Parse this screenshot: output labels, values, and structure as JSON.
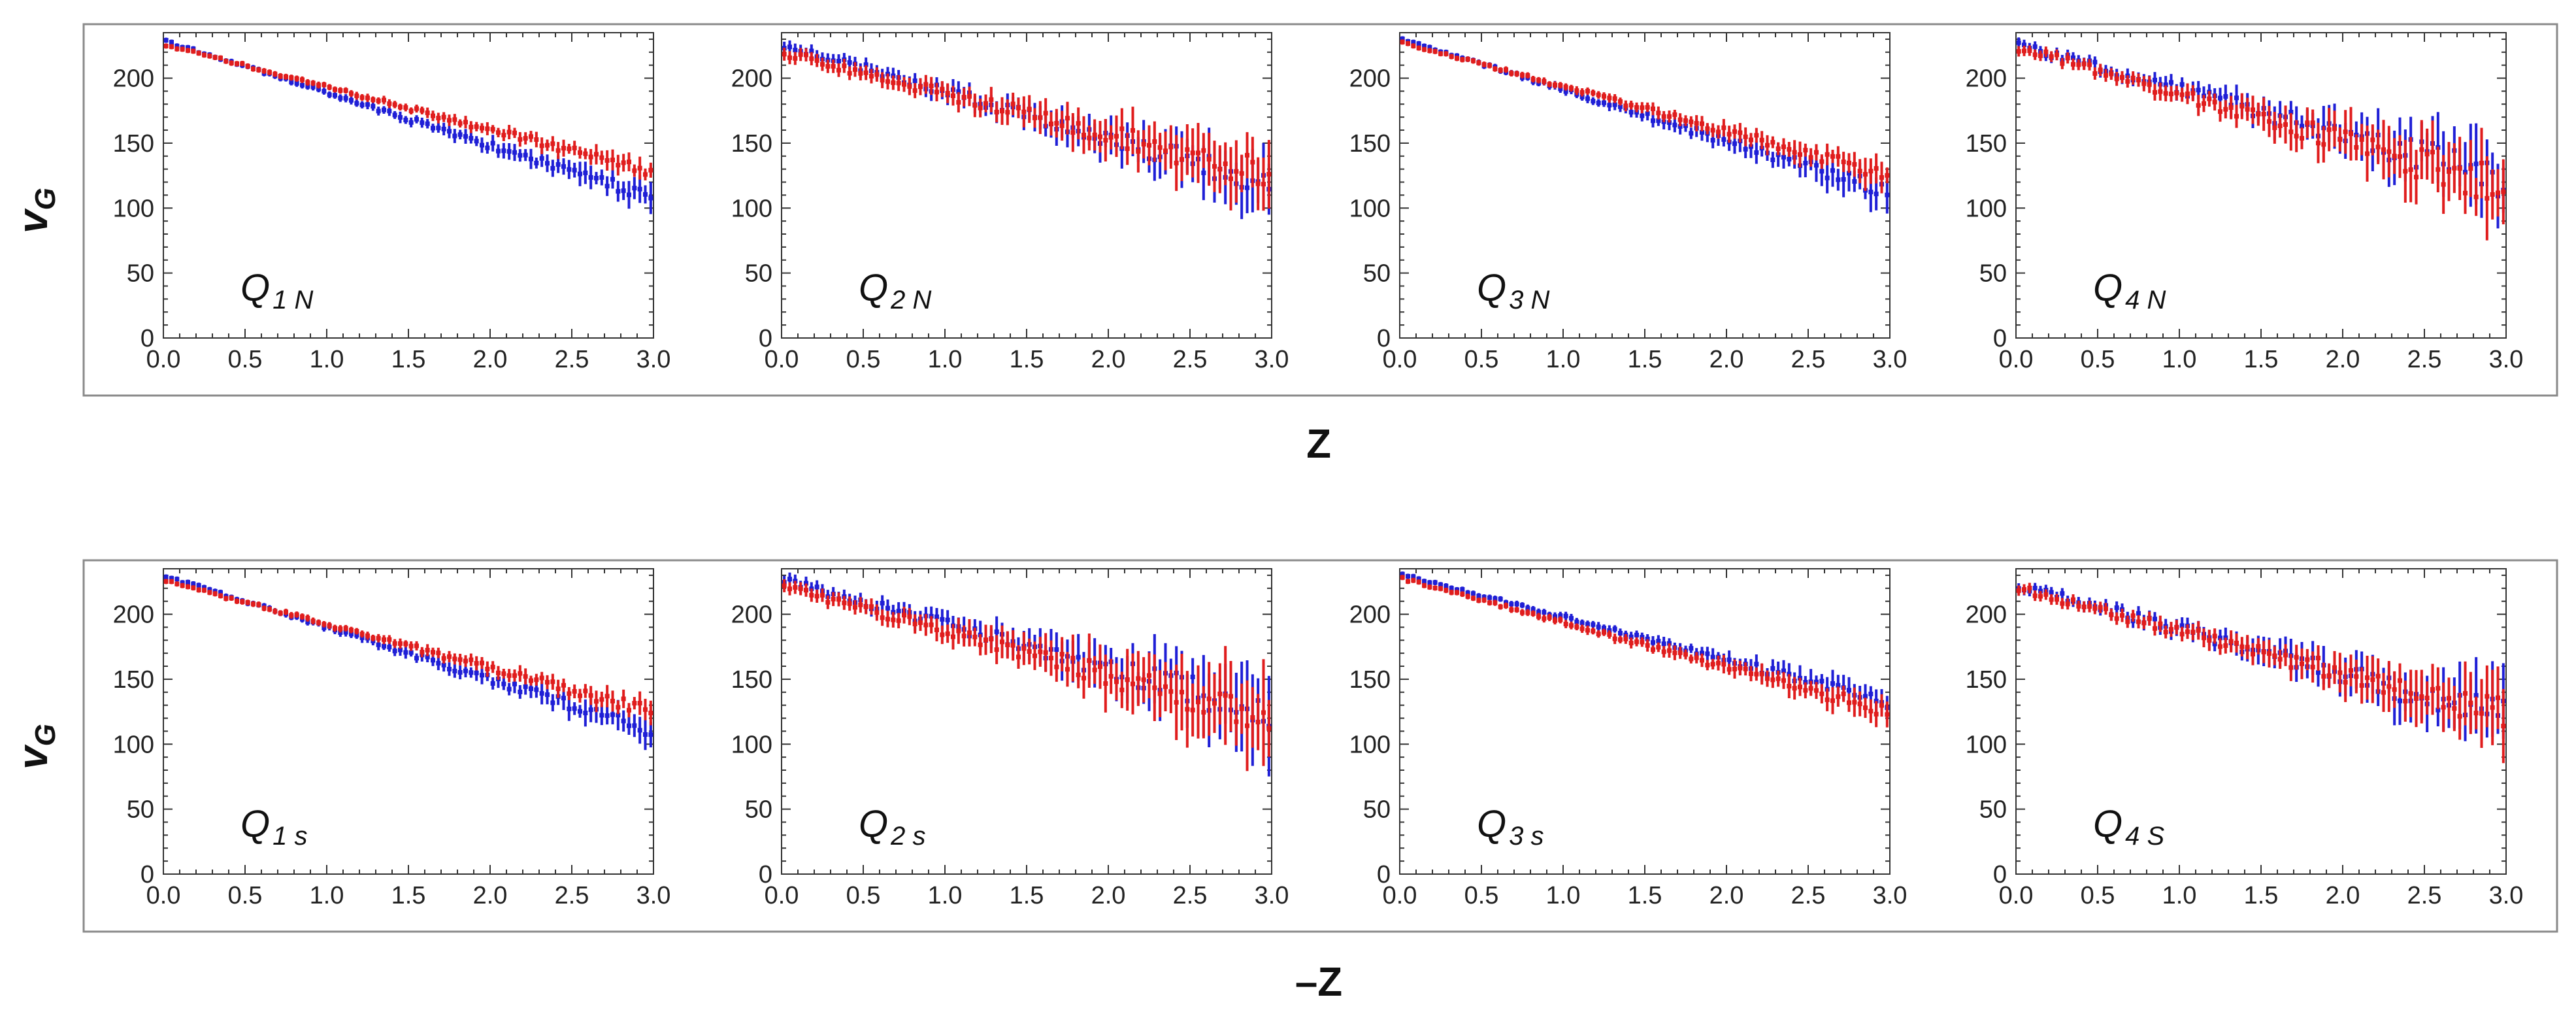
{
  "colors": {
    "blue": "#1f1fd6",
    "red": "#e01d1d",
    "frame": "#8a8a8a",
    "axis": "#333333"
  },
  "figure": {
    "rows": [
      {
        "xlabel": "Z",
        "ylabel_main": "v",
        "ylabel_sub": "G"
      },
      {
        "xlabel": "–Z",
        "ylabel_main": "v",
        "ylabel_sub": "G"
      }
    ]
  },
  "chart_data": [
    {
      "type": "scatter",
      "title_main": "Q",
      "title_sub": "1 N",
      "xlim": [
        0,
        3
      ],
      "ylim": [
        0,
        235
      ],
      "x_ticks": [
        "0.0",
        "0.5",
        "1.0",
        "1.5",
        "2.0",
        "2.5",
        "3.0"
      ],
      "y_ticks": [
        "0",
        "50",
        "100",
        "150",
        "200"
      ],
      "series": [
        {
          "name": "blue",
          "y0": 229,
          "y1": 108,
          "noise_start": 1,
          "noise_end": 5,
          "err_start": 2,
          "err_end": 9,
          "seed": 11
        },
        {
          "name": "red",
          "y0": 226,
          "y1": 128,
          "noise_start": 1,
          "noise_end": 4,
          "err_start": 2,
          "err_end": 7,
          "seed": 12
        }
      ]
    },
    {
      "type": "scatter",
      "title_main": "Q",
      "title_sub": "2 N",
      "xlim": [
        0,
        3
      ],
      "ylim": [
        0,
        235
      ],
      "x_ticks": [
        "0.0",
        "0.5",
        "1.0",
        "1.5",
        "2.0",
        "2.5",
        "3.0"
      ],
      "y_ticks": [
        "0",
        "50",
        "100",
        "150",
        "200"
      ],
      "series": [
        {
          "name": "blue",
          "y0": 226,
          "y1": 118,
          "noise_start": 3,
          "noise_end": 13,
          "err_start": 5,
          "err_end": 22,
          "seed": 21
        },
        {
          "name": "red",
          "y0": 220,
          "y1": 125,
          "noise_start": 3,
          "noise_end": 13,
          "err_start": 5,
          "err_end": 24,
          "seed": 22
        }
      ]
    },
    {
      "type": "scatter",
      "title_main": "Q",
      "title_sub": "3 N",
      "xlim": [
        0,
        3
      ],
      "ylim": [
        0,
        235
      ],
      "x_ticks": [
        "0.0",
        "0.5",
        "1.0",
        "1.5",
        "2.0",
        "2.5",
        "3.0"
      ],
      "y_ticks": [
        "0",
        "50",
        "100",
        "150",
        "200"
      ],
      "series": [
        {
          "name": "blue",
          "y0": 231,
          "y1": 112,
          "noise_start": 1,
          "noise_end": 6,
          "err_start": 2,
          "err_end": 12,
          "seed": 31
        },
        {
          "name": "red",
          "y0": 228,
          "y1": 125,
          "noise_start": 1,
          "noise_end": 5,
          "err_start": 2,
          "err_end": 10,
          "seed": 32
        }
      ]
    },
    {
      "type": "scatter",
      "title_main": "Q",
      "title_sub": "4 N",
      "xlim": [
        0,
        3
      ],
      "ylim": [
        0,
        235
      ],
      "x_ticks": [
        "0.0",
        "0.5",
        "1.0",
        "1.5",
        "2.0",
        "2.5",
        "3.0"
      ],
      "y_ticks": [
        "0",
        "50",
        "100",
        "150",
        "200"
      ],
      "series": [
        {
          "name": "blue",
          "y0": 226,
          "y1": 122,
          "noise_start": 3,
          "noise_end": 16,
          "err_start": 4,
          "err_end": 26,
          "seed": 41
        },
        {
          "name": "red",
          "y0": 224,
          "y1": 115,
          "noise_start": 3,
          "noise_end": 16,
          "err_start": 4,
          "err_end": 28,
          "seed": 42
        }
      ]
    },
    {
      "type": "scatter",
      "title_main": "Q",
      "title_sub": "1 s",
      "xlim": [
        0,
        3
      ],
      "ylim": [
        0,
        235
      ],
      "x_ticks": [
        "0.0",
        "0.5",
        "1.0",
        "1.5",
        "2.0",
        "2.5",
        "3.0"
      ],
      "y_ticks": [
        "0",
        "50",
        "100",
        "150",
        "200"
      ],
      "series": [
        {
          "name": "blue",
          "y0": 230,
          "y1": 110,
          "noise_start": 1,
          "noise_end": 5,
          "err_start": 2,
          "err_end": 10,
          "seed": 51
        },
        {
          "name": "red",
          "y0": 226,
          "y1": 125,
          "noise_start": 1,
          "noise_end": 5,
          "err_start": 2,
          "err_end": 8,
          "seed": 52
        }
      ]
    },
    {
      "type": "scatter",
      "title_main": "Q",
      "title_sub": "2 s",
      "xlim": [
        0,
        3
      ],
      "ylim": [
        0,
        235
      ],
      "x_ticks": [
        "0.0",
        "0.5",
        "1.0",
        "1.5",
        "2.0",
        "2.5",
        "3.0"
      ],
      "y_ticks": [
        "0",
        "50",
        "100",
        "150",
        "200"
      ],
      "series": [
        {
          "name": "blue",
          "y0": 226,
          "y1": 125,
          "noise_start": 3,
          "noise_end": 15,
          "err_start": 5,
          "err_end": 30,
          "seed": 61
        },
        {
          "name": "red",
          "y0": 222,
          "y1": 118,
          "noise_start": 3,
          "noise_end": 15,
          "err_start": 5,
          "err_end": 32,
          "seed": 62
        }
      ]
    },
    {
      "type": "scatter",
      "title_main": "Q",
      "title_sub": "3 s",
      "xlim": [
        0,
        3
      ],
      "ylim": [
        0,
        235
      ],
      "x_ticks": [
        "0.0",
        "0.5",
        "1.0",
        "1.5",
        "2.0",
        "2.5",
        "3.0"
      ],
      "y_ticks": [
        "0",
        "50",
        "100",
        "150",
        "200"
      ],
      "series": [
        {
          "name": "blue",
          "y0": 231,
          "y1": 132,
          "noise_start": 1,
          "noise_end": 5,
          "err_start": 2,
          "err_end": 10,
          "seed": 71
        },
        {
          "name": "red",
          "y0": 228,
          "y1": 125,
          "noise_start": 1,
          "noise_end": 5,
          "err_start": 2,
          "err_end": 10,
          "seed": 72
        }
      ]
    },
    {
      "type": "scatter",
      "title_main": "Q",
      "title_sub": "4 S",
      "xlim": [
        0,
        3
      ],
      "ylim": [
        0,
        235
      ],
      "x_ticks": [
        "0.0",
        "0.5",
        "1.0",
        "1.5",
        "2.0",
        "2.5",
        "3.0"
      ],
      "y_ticks": [
        "0",
        "50",
        "100",
        "150",
        "200"
      ],
      "series": [
        {
          "name": "blue",
          "y0": 223,
          "y1": 120,
          "noise_start": 3,
          "noise_end": 13,
          "err_start": 4,
          "err_end": 24,
          "seed": 81
        },
        {
          "name": "red",
          "y0": 220,
          "y1": 122,
          "noise_start": 3,
          "noise_end": 13,
          "err_start": 4,
          "err_end": 22,
          "seed": 82
        }
      ]
    }
  ]
}
